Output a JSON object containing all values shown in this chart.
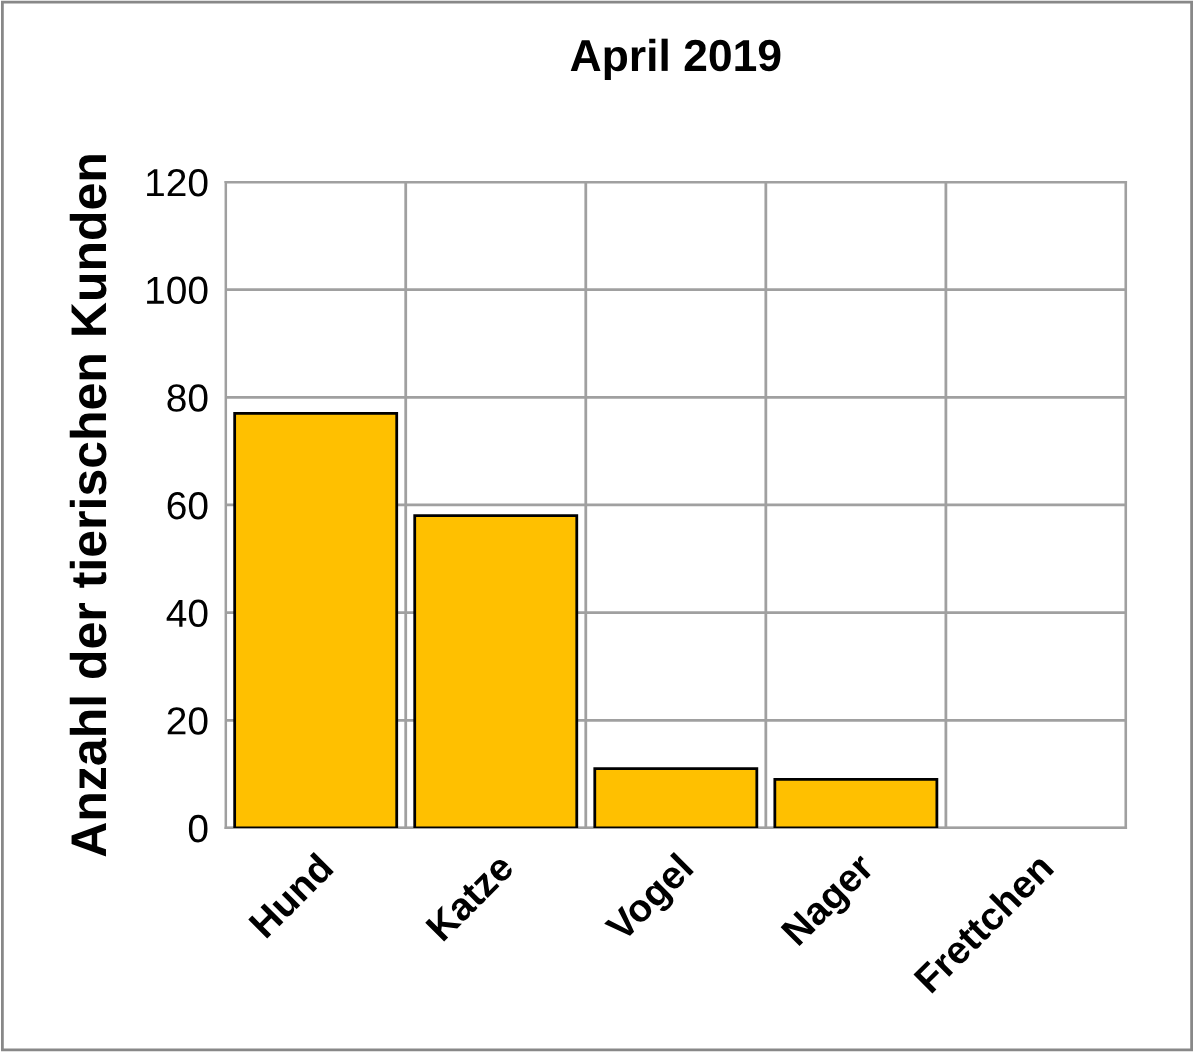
{
  "chart_data": {
    "type": "bar",
    "title": "April 2019",
    "ylabel": "Anzahl der tierischen Kunden",
    "categories": [
      "Hund",
      "Katze",
      "Vogel",
      "Nager",
      "Frettchen"
    ],
    "values": [
      77,
      58,
      11,
      9,
      0
    ],
    "color": "#ffc000",
    "ylim": [
      0,
      120
    ],
    "yticks": [
      0,
      20,
      40,
      60,
      80,
      100,
      120
    ],
    "grid": true,
    "legend": false
  }
}
